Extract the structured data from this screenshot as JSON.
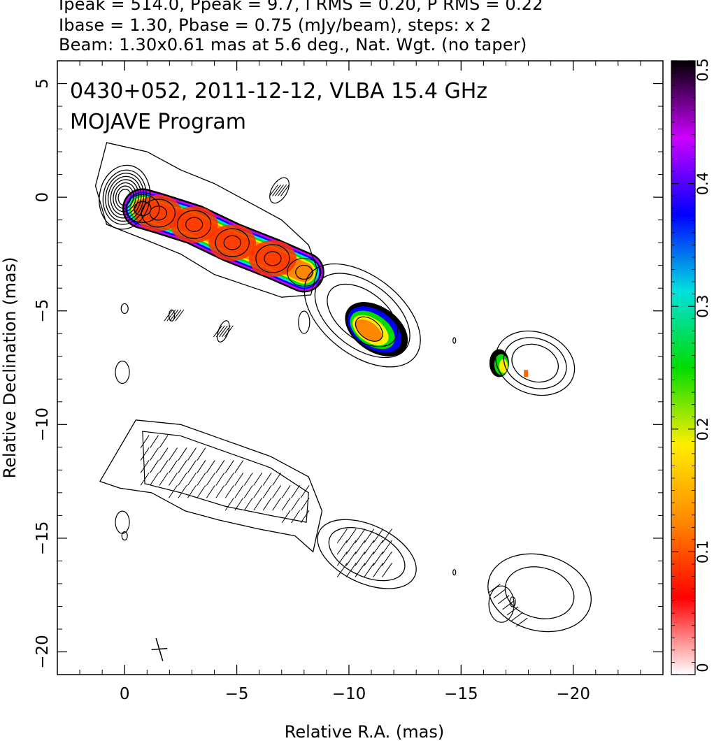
{
  "header": {
    "line1": "Ipeak = 514.0, Ppeak = 9.7, I RMS = 0.20, P RMS = 0.22",
    "line2": "Ibase = 1.30, Pbase = 0.75 (mJy/beam), steps: x 2",
    "line3": "Beam: 1.30x0.61 mas at 5.6 deg., Nat. Wgt. (no taper)"
  },
  "chart_data": {
    "type": "contour",
    "title_line1": "0430+052, 2011-12-12, VLBA 15.4 GHz",
    "title_line2": "MOJAVE Program",
    "xlabel": "Relative R.A. (mas)",
    "ylabel": "Relative Declination (mas)",
    "xlim": [
      3,
      -24
    ],
    "ylim": [
      -21,
      6
    ],
    "xticks": [
      0,
      -5,
      -10,
      -15,
      -20
    ],
    "xtick_labels": [
      "0",
      "−5",
      "−10",
      "−15",
      "−20"
    ],
    "yticks": [
      5,
      0,
      -5,
      -10,
      -15,
      -20
    ],
    "ytick_labels": [
      "5",
      "0",
      "−5",
      "−10",
      "−15",
      "−20"
    ],
    "colorbar": {
      "range": [
        0,
        0.5
      ],
      "ticks": [
        0,
        0.1,
        0.2,
        0.3,
        0.4,
        0.5
      ],
      "tick_labels": [
        "0",
        "0.1",
        "0.2",
        "0.3",
        "0.4",
        "0.5"
      ],
      "stops": [
        "#ffffff",
        "#ff0000",
        "#ff8800",
        "#ffee00",
        "#00dd00",
        "#00e0e0",
        "#0000ff",
        "#cc00ff",
        "#000000"
      ]
    },
    "upper_panel": {
      "offset_dec": 0,
      "core": {
        "ra": 0,
        "dec": 0
      },
      "knots": [
        {
          "ra": -1.5,
          "dec": -0.7,
          "frac_pol": 0.08
        },
        {
          "ra": -3.1,
          "dec": -1.2,
          "frac_pol": 0.11
        },
        {
          "ra": -4.8,
          "dec": -2.0,
          "frac_pol": 0.08
        },
        {
          "ra": -6.6,
          "dec": -2.7,
          "frac_pol": 0.11
        },
        {
          "ra": -11.0,
          "dec": -5.8,
          "frac_pol": 0.12
        },
        {
          "ra": -16.7,
          "dec": -7.3,
          "frac_pol": 0.2
        }
      ]
    },
    "lower_panel": {
      "offset_dec": -11,
      "description_vectors": "polarization EVPA ticks"
    }
  }
}
